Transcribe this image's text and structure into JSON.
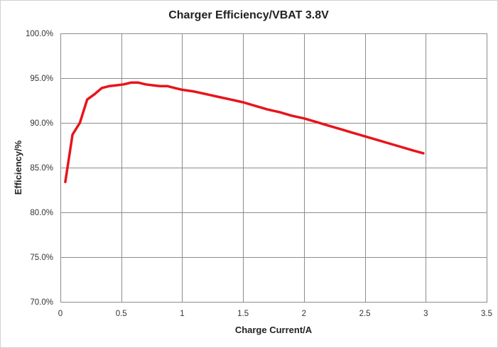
{
  "chart_data": {
    "type": "line",
    "title": "Charger Efficiency/VBAT 3.8V",
    "xlabel": "Charge Current/A",
    "ylabel": "Efficiency/%",
    "xlim": [
      0,
      3.5
    ],
    "ylim": [
      70,
      100
    ],
    "x_ticks": [
      0,
      0.5,
      1,
      1.5,
      2,
      2.5,
      3,
      3.5
    ],
    "x_tick_labels": [
      "0",
      "0.5",
      "1",
      "1.5",
      "2",
      "2.5",
      "3",
      "3.5"
    ],
    "y_ticks": [
      70,
      75,
      80,
      85,
      90,
      95,
      100
    ],
    "y_tick_labels": [
      "70.0%",
      "75.0%",
      "80.0%",
      "85.0%",
      "90.0%",
      "95.0%",
      "100.0%"
    ],
    "grid": true,
    "legend": "none",
    "series": [
      {
        "color": "#e8141b",
        "x": [
          0.04,
          0.1,
          0.16,
          0.22,
          0.28,
          0.34,
          0.4,
          0.46,
          0.52,
          0.58,
          0.64,
          0.7,
          0.76,
          0.82,
          0.88,
          0.94,
          1.0,
          1.1,
          1.2,
          1.3,
          1.4,
          1.5,
          1.6,
          1.7,
          1.8,
          1.9,
          2.0,
          2.1,
          2.2,
          2.3,
          2.4,
          2.5,
          2.6,
          2.7,
          2.8,
          2.9,
          2.98
        ],
        "y": [
          83.4,
          88.7,
          90.0,
          92.6,
          93.2,
          93.9,
          94.1,
          94.2,
          94.3,
          94.5,
          94.5,
          94.3,
          94.2,
          94.1,
          94.1,
          93.9,
          93.7,
          93.5,
          93.2,
          92.9,
          92.6,
          92.3,
          91.9,
          91.5,
          91.2,
          90.8,
          90.5,
          90.1,
          89.7,
          89.3,
          88.9,
          88.5,
          88.1,
          87.7,
          87.3,
          86.9,
          86.6
        ]
      }
    ]
  }
}
